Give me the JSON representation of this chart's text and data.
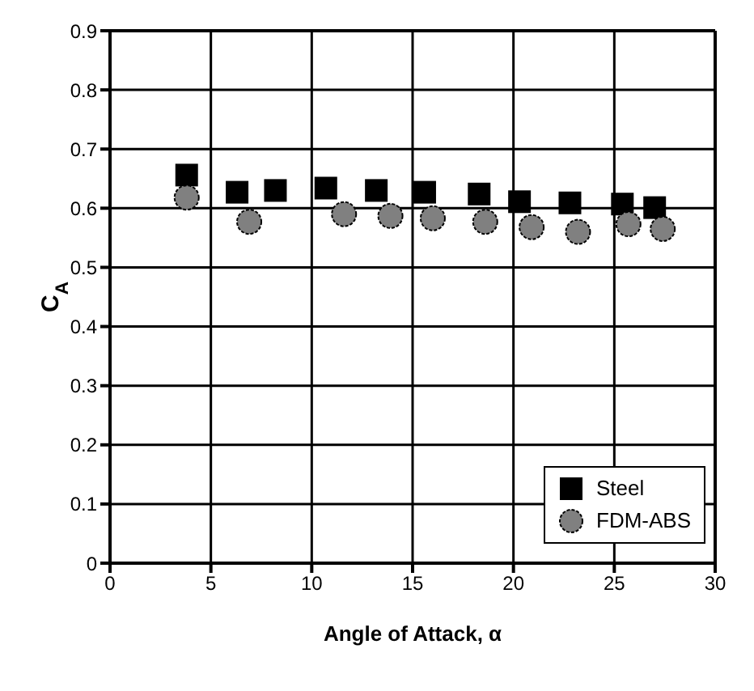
{
  "chart_data": {
    "type": "scatter",
    "xlabel": "Angle of Attack, α",
    "ylabel": "C$_{A}$",
    "xlim": [
      0,
      30
    ],
    "xticks": [
      0,
      5,
      10,
      15,
      20,
      25,
      30
    ],
    "ylim": [
      0,
      0.9
    ],
    "yticks": [
      0,
      0.1,
      0.2,
      0.3,
      0.4,
      0.5,
      0.6,
      0.7,
      0.8,
      0.9
    ],
    "grid": true,
    "legend": "bottom right",
    "series": [
      {
        "name": "Steel",
        "color": "#000000",
        "marker": "square",
        "x": [
          3.8,
          6.3,
          8.2,
          10.7,
          13.2,
          15.6,
          18.3,
          20.3,
          22.8,
          25.4,
          27.0
        ],
        "values": [
          0.656,
          0.627,
          0.63,
          0.634,
          0.63,
          0.627,
          0.624,
          0.611,
          0.609,
          0.607,
          0.601
        ]
      },
      {
        "name": "FDM-ABS",
        "color": "#808080",
        "marker": "circle",
        "x": [
          3.8,
          6.9,
          11.6,
          13.9,
          16.0,
          18.6,
          20.9,
          23.2,
          25.7,
          27.4
        ],
        "values": [
          0.618,
          0.577,
          0.59,
          0.587,
          0.583,
          0.577,
          0.568,
          0.56,
          0.573,
          0.565
        ]
      }
    ]
  }
}
